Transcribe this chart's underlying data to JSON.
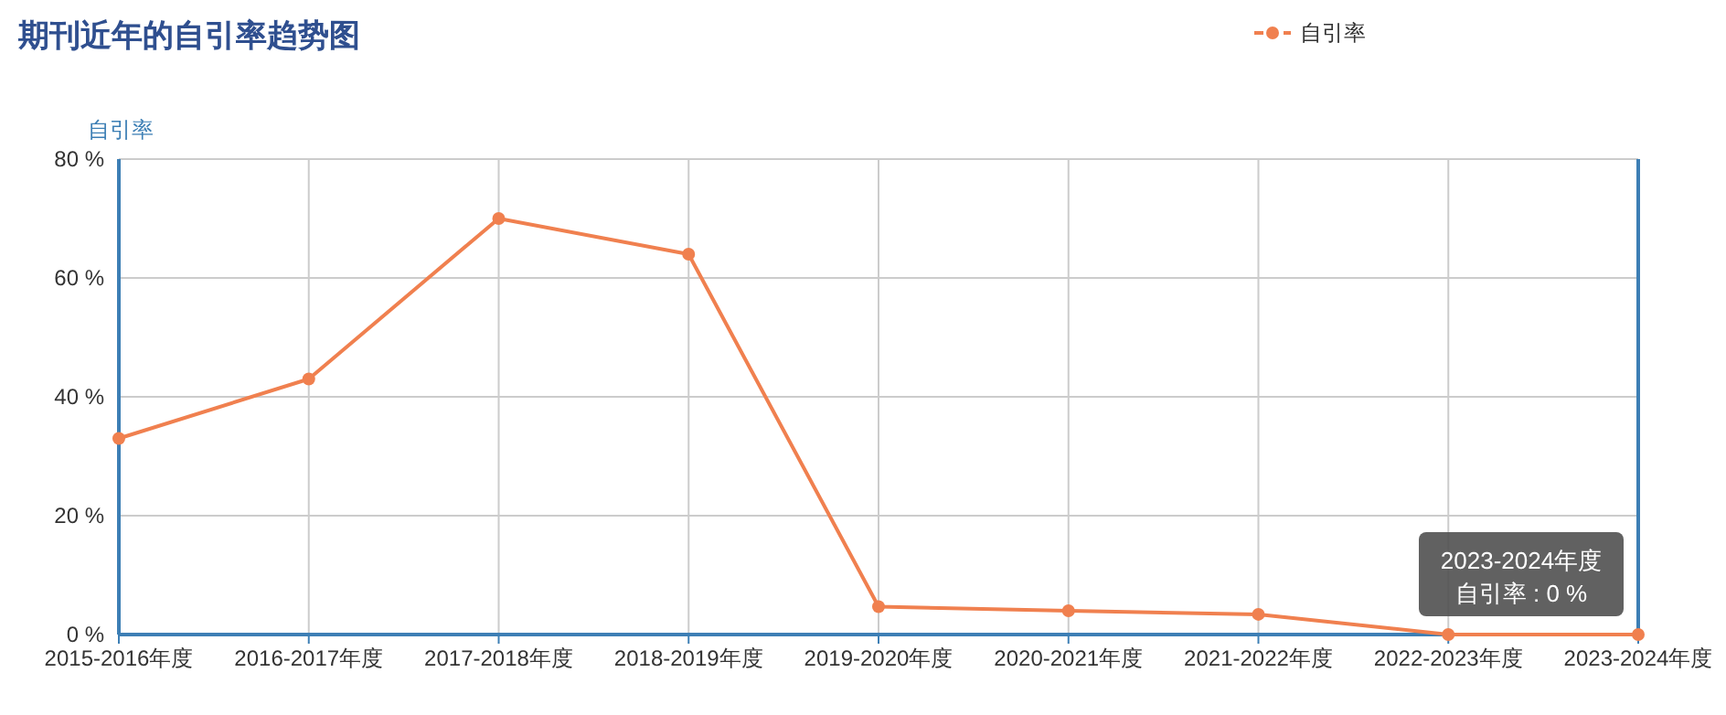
{
  "chart_data": {
    "type": "line",
    "title": "期刊近年的自引率趋势图",
    "ylabel": "自引率",
    "categories": [
      "2015-2016年度",
      "2016-2017年度",
      "2017-2018年度",
      "2018-2019年度",
      "2019-2020年度",
      "2020-2021年度",
      "2021-2022年度",
      "2022-2023年度",
      "2023-2024年度"
    ],
    "series": [
      {
        "name": "自引率",
        "color": "#f0804f",
        "values": [
          33,
          43,
          70,
          64,
          4.7,
          4.0,
          3.4,
          0,
          0
        ]
      }
    ],
    "ylim": [
      0,
      80
    ],
    "yticks": [
      {
        "value": 0,
        "label": "0 %"
      },
      {
        "value": 20,
        "label": "20 %"
      },
      {
        "value": 40,
        "label": "40 %"
      },
      {
        "value": 60,
        "label": "60 %"
      },
      {
        "value": 80,
        "label": "80 %"
      }
    ],
    "grid": true,
    "legend": "top right",
    "marker": "circle",
    "line_style": "solid",
    "annotations": [
      {
        "text": "2023-2024年度",
        "x": "2023-2024年度",
        "y": 0
      },
      {
        "text": "自引率 : 0 %",
        "x": "2023-2024年度",
        "y": 0
      }
    ]
  }
}
